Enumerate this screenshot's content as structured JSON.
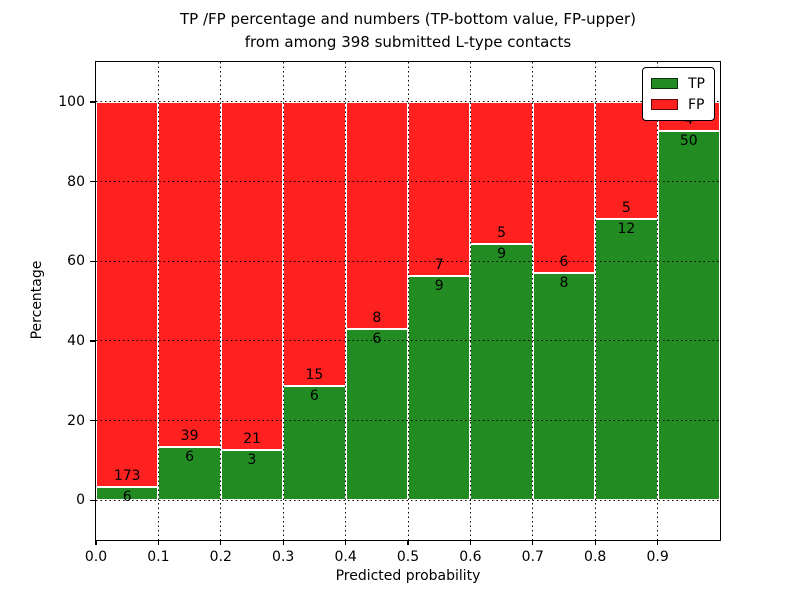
{
  "chart_data": {
    "type": "bar",
    "stacked": true,
    "title_line1": "TP /FP percentage and numbers (TP-bottom value, FP-upper)",
    "title_line2": "from among 398 submitted L-type contacts",
    "xlabel": "Predicted probability",
    "ylabel": "Percentage",
    "xlim": [
      0.0,
      1.0
    ],
    "ylim": [
      -10,
      110
    ],
    "x_tick_values": [
      0.0,
      0.1,
      0.2,
      0.3,
      0.4,
      0.5,
      0.6,
      0.7,
      0.8,
      0.9
    ],
    "x_tick_labels": [
      "0.0",
      "0.1",
      "0.2",
      "0.3",
      "0.4",
      "0.5",
      "0.6",
      "0.7",
      "0.8",
      "0.9"
    ],
    "y_tick_values": [
      0,
      20,
      40,
      60,
      80,
      100
    ],
    "y_tick_labels": [
      "0",
      "20",
      "40",
      "60",
      "80",
      "100"
    ],
    "grid": "dotted",
    "bin_width": 0.1,
    "bin_starts": [
      0.0,
      0.1,
      0.2,
      0.3,
      0.4,
      0.5,
      0.6,
      0.7,
      0.8,
      0.9
    ],
    "series": [
      {
        "name": "TP",
        "color": "#228B22",
        "counts": [
          6,
          6,
          3,
          6,
          6,
          9,
          9,
          8,
          12,
          50
        ]
      },
      {
        "name": "FP",
        "color": "#FF2020",
        "counts": [
          173,
          39,
          21,
          15,
          8,
          7,
          5,
          6,
          5,
          4
        ]
      }
    ],
    "tp_percent_of_bin": [
      3.4,
      13.3,
      12.5,
      28.6,
      42.9,
      56.3,
      64.3,
      57.1,
      70.6,
      92.6
    ],
    "legend": {
      "position": "upper right"
    },
    "bar_edge_color": "#ffffff",
    "grid_color": "#000000"
  }
}
